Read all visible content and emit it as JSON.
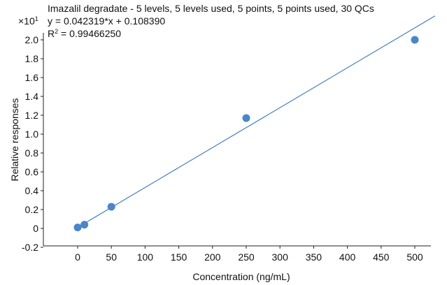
{
  "chart_data": {
    "type": "scatter",
    "title": "Imazalil degradate - 5 levels, 5 levels used, 5 points, 5 points used, 30 QCs",
    "equation": "y = 0.042319*x + 0.108390",
    "r2_prefix": "R",
    "r2_sup": "2",
    "r2_value": " = 0.99466250",
    "multiplier_base": "×10",
    "multiplier_exp": "1",
    "xlabel": "Concentration (ng/mL)",
    "ylabel": "Relative responses",
    "xlim": [
      -50,
      540
    ],
    "ylim": [
      -0.22,
      2.12
    ],
    "xticks": [
      0,
      50,
      100,
      150,
      200,
      250,
      300,
      350,
      400,
      450,
      500
    ],
    "yticks": [
      -0.2,
      0,
      0.2,
      0.4,
      0.6,
      0.8,
      1.0,
      1.2,
      1.4,
      1.6,
      1.8,
      2.0
    ],
    "ytick_labels": [
      "-0.2",
      "0",
      "0.2",
      "0.4",
      "0.6",
      "0.8",
      "1.0",
      "1.2",
      "1.4",
      "1.6",
      "1.8",
      "2.0"
    ],
    "points": [
      {
        "x": 0,
        "y": 0.01
      },
      {
        "x": 10,
        "y": 0.04
      },
      {
        "x": 50,
        "y": 0.23
      },
      {
        "x": 250,
        "y": 1.17
      },
      {
        "x": 500,
        "y": 2.0
      }
    ],
    "fit": {
      "slope": 0.0042319,
      "intercept": 0.010839
    },
    "colors": {
      "point": "#4a86c8",
      "line": "#3a78bd",
      "axis": "#222222"
    }
  }
}
